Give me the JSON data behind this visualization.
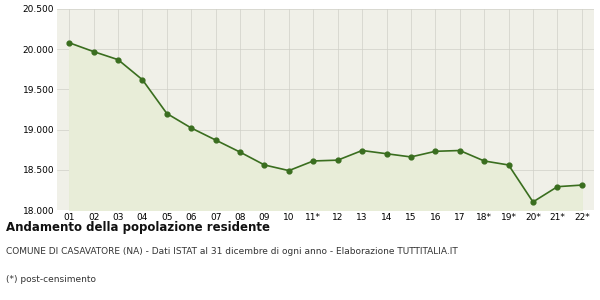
{
  "x_labels": [
    "01",
    "02",
    "03",
    "04",
    "05",
    "06",
    "07",
    "08",
    "09",
    "10",
    "11*",
    "12",
    "13",
    "14",
    "15",
    "16",
    "17",
    "18*",
    "19*",
    "20*",
    "21*",
    "22*"
  ],
  "y_values": [
    20080,
    19970,
    19870,
    19620,
    19200,
    19020,
    18870,
    18720,
    18560,
    18490,
    18610,
    18620,
    18740,
    18700,
    18660,
    18730,
    18740,
    18610,
    18560,
    18100,
    18290,
    18310
  ],
  "line_color": "#3a6e1f",
  "fill_color": "#e8edd8",
  "marker_color": "#3a6e1f",
  "bg_color": "#f0f0e8",
  "grid_color": "#d0d0c8",
  "ylim": [
    18000,
    20500
  ],
  "yticks": [
    18000,
    18500,
    19000,
    19500,
    20000,
    20500
  ],
  "title": "Andamento della popolazione residente",
  "subtitle": "COMUNE DI CASAVATORE (NA) - Dati ISTAT al 31 dicembre di ogni anno - Elaborazione TUTTITALIA.IT",
  "footnote": "(*) post-censimento",
  "title_fontsize": 8.5,
  "subtitle_fontsize": 6.5,
  "footnote_fontsize": 6.5
}
